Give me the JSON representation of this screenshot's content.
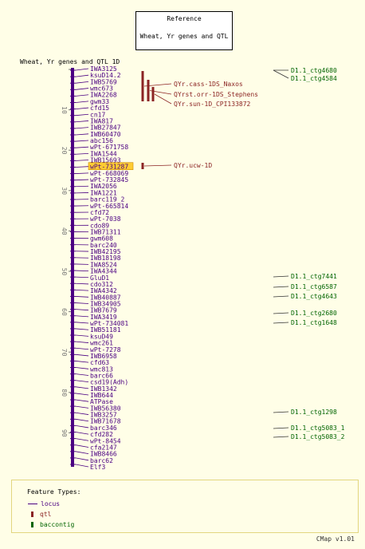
{
  "reference": {
    "title": "Reference",
    "subtitle": "Wheat, Yr genes and QTL"
  },
  "map": {
    "title": "Wheat, Yr genes and QTL 1D",
    "scale_ticks": [
      "10",
      "20",
      "30",
      "40",
      "50",
      "60",
      "70",
      "80",
      "90"
    ],
    "markers": [
      "IWA3125",
      "ksuD14.2",
      "IWB5769",
      "wmc673",
      "IWA2268",
      "gwm33",
      "cfd15",
      "cn17",
      "IWA817",
      "IWB27847",
      "IWB60470",
      "abc156",
      "wPt-671758",
      "IWA1544",
      "IWB15693",
      "wPt-731287",
      "wPt-668069",
      "wPt-732845",
      "IWA2056",
      "IWA1221",
      "barc119_2",
      "wPt-665814",
      "cfd72",
      "wPt-7038",
      "cdo89",
      "IWB71311",
      "gwm608",
      "barc240",
      "IWB42195",
      "IWB18198",
      "IWA8524",
      "IWA4344",
      "GluD1",
      "cdo312",
      "IWA4342",
      "IWB40887",
      "IWB34905",
      "IWB7679",
      "IWA3419",
      "wPt-734081",
      "IWB51181",
      "ksuD49",
      "wmc261",
      "wPt-7278",
      "IWB6958",
      "cfd63",
      "wmc813",
      "barc66",
      "csd19(Adh)",
      "IWB1342",
      "IWB644",
      "ATPase",
      "IWB56380",
      "IWB3257",
      "IWB71678",
      "barc346",
      "cfd282",
      "wPt-8454",
      "cfa2147",
      "IWB8466",
      "barc62",
      "Elf3"
    ],
    "highlighted_marker": "wPt-731287",
    "qtl": [
      {
        "label": "QYr.cass-1DS_Naxos"
      },
      {
        "label": "QYrst.orr-1DS_Stephens"
      },
      {
        "label": "QYr.sun-1D_CPI133872"
      },
      {
        "label": "QYr.ucw-1D"
      }
    ],
    "contigs": [
      "D1.1_ctg4680",
      "D1.1_ctg4584",
      "D1.1_ctg7441",
      "D1.1_ctg6587",
      "D1.1_ctg4643",
      "D1.1_ctg2680",
      "D1.1_ctg1648",
      "D1.1_ctg1298",
      "D1.1_ctg5083_1",
      "D1.1_ctg5083_2"
    ]
  },
  "legend": {
    "title": "Feature Types:",
    "items": [
      {
        "label": "locus",
        "color": "#4b0082"
      },
      {
        "label": "qtl",
        "color": "#8b2323"
      },
      {
        "label": "baccontig",
        "color": "#006400"
      }
    ]
  },
  "footer": "CMap v1.01",
  "colors": {
    "locus": "#4b0082",
    "qtl": "#8b2323",
    "contig": "#006400",
    "highlight": "#ffcc33"
  }
}
